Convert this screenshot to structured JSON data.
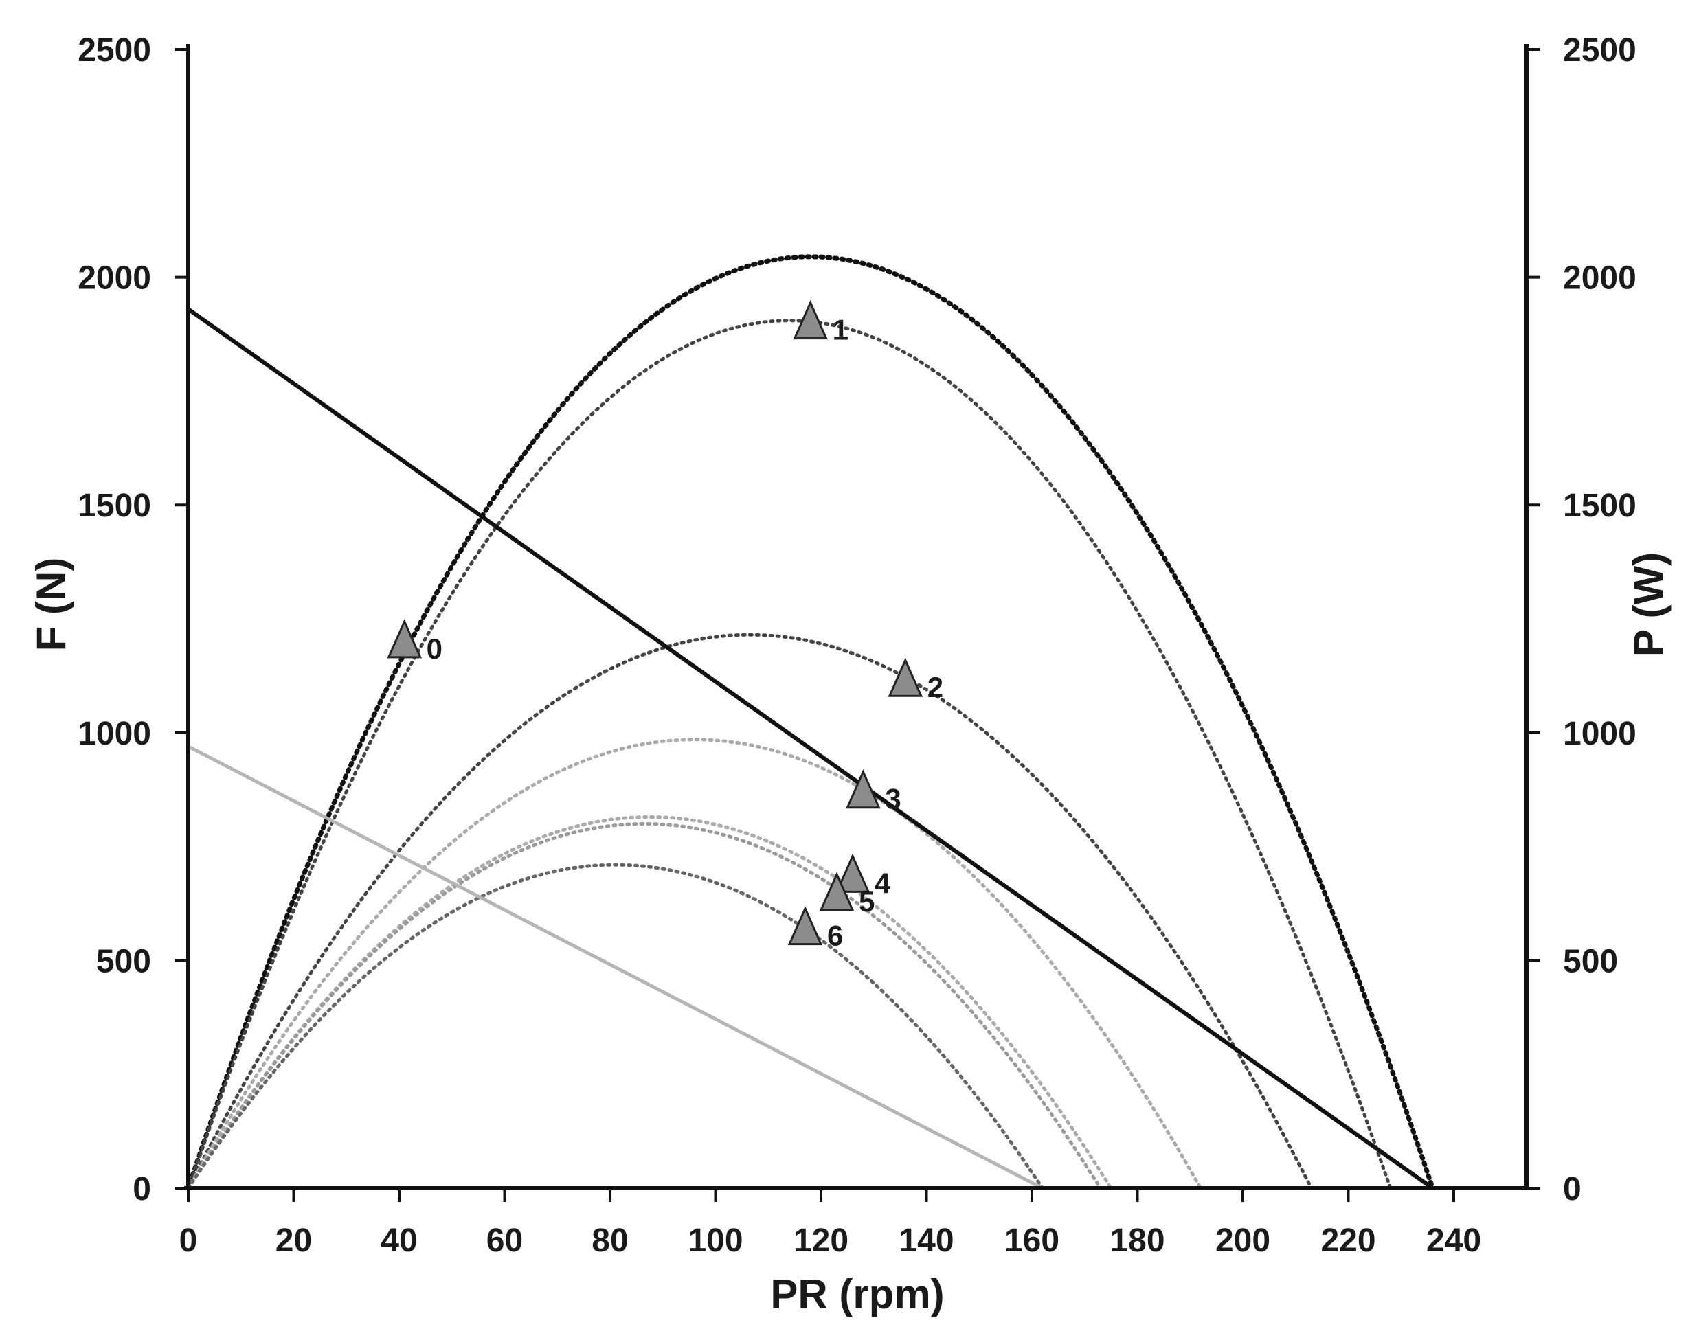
{
  "chart_data": {
    "type": "scatter",
    "title": "",
    "xlabel": "PR (rpm)",
    "ylabel_left": "F (N)",
    "ylabel_right": "P (W)",
    "xlim": [
      0,
      250
    ],
    "ylim_left": [
      0,
      2500
    ],
    "ylim_right": [
      0,
      2500
    ],
    "x_ticks": [
      0,
      20,
      40,
      60,
      80,
      100,
      120,
      140,
      160,
      180,
      200,
      220,
      240
    ],
    "y_ticks_left": [
      0,
      500,
      1000,
      1500,
      2000,
      2500
    ],
    "y_ticks_right": [
      0,
      500,
      1000,
      1500,
      2000,
      2500
    ],
    "grid": false,
    "lines": [
      {
        "style": "solid",
        "color": "#111111",
        "x": [
          0,
          236
        ],
        "y": [
          1930,
          0
        ]
      },
      {
        "style": "solid",
        "color": "#b5b5b5",
        "x": [
          0,
          162
        ],
        "y": [
          970,
          0
        ]
      }
    ],
    "power_curves": [
      {
        "color": "#111111",
        "x_max": 236,
        "peak": 2045
      },
      {
        "color": "#444444",
        "x_max": 228,
        "peak": 1905
      },
      {
        "color": "#444444",
        "x_max": 213,
        "peak": 1215
      },
      {
        "color": "#aaaaaa",
        "x_max": 192,
        "peak": 985
      },
      {
        "color": "#aaaaaa",
        "x_max": 175,
        "peak": 815
      },
      {
        "color": "#9a9a9a",
        "x_max": 173,
        "peak": 800
      },
      {
        "color": "#666666",
        "x_max": 162,
        "peak": 710
      }
    ],
    "points": [
      {
        "label": "0",
        "x": 41,
        "y": 1205
      },
      {
        "label": "1",
        "x": 118,
        "y": 1905
      },
      {
        "label": "2",
        "x": 136,
        "y": 1120
      },
      {
        "label": "3",
        "x": 128,
        "y": 875
      },
      {
        "label": "4",
        "x": 126,
        "y": 690
      },
      {
        "label": "5",
        "x": 123,
        "y": 650
      },
      {
        "label": "6",
        "x": 117,
        "y": 575
      }
    ],
    "marker": {
      "shape": "triangle",
      "fill": "#8c8c8c",
      "stroke": "#222222"
    }
  }
}
